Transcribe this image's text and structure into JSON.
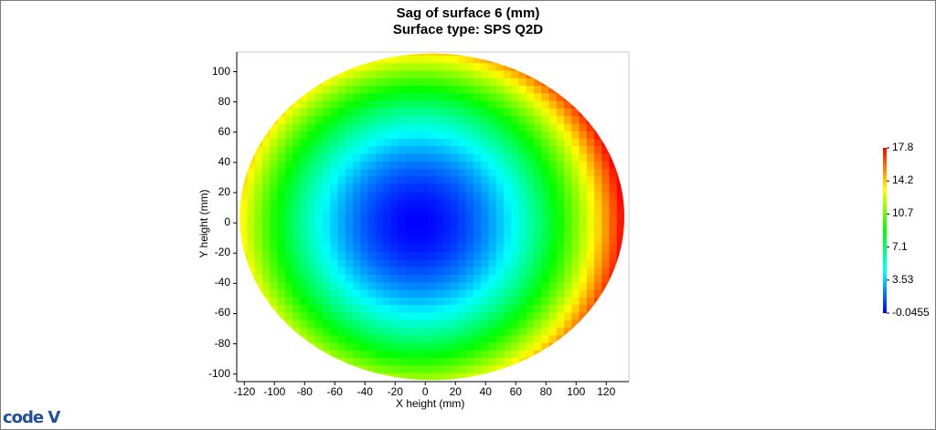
{
  "chart_data": {
    "type": "heatmap",
    "title": "Sag of surface 6 (mm)",
    "subtitle": "Surface type: SPS Q2D",
    "xlabel": "X height (mm)",
    "ylabel": "Y height (mm)",
    "xlim": [
      -125,
      135
    ],
    "ylim": [
      -105,
      113
    ],
    "x_ticks": [
      -120,
      -100,
      -80,
      -60,
      -40,
      -20,
      0,
      20,
      40,
      60,
      80,
      100,
      120
    ],
    "y_ticks": [
      -100,
      -80,
      -60,
      -40,
      -20,
      0,
      20,
      40,
      60,
      80,
      100
    ],
    "x_tick_labels": [
      "-120",
      "-100",
      "-80",
      "-60",
      "-40",
      "-20",
      "0",
      "20",
      "40",
      "60",
      "80",
      "100",
      "120"
    ],
    "y_tick_labels": [
      "-100",
      "-80",
      "-60",
      "-40",
      "-20",
      "0",
      "20",
      "40",
      "60",
      "80",
      "100"
    ],
    "aperture": {
      "center": [
        0,
        0
      ],
      "x_min": -123,
      "x_max": 132,
      "y_min": -104,
      "y_max": 112
    },
    "sag_min_location": [
      -5,
      0
    ],
    "colorbar": {
      "min": -0.0455,
      "max": 17.8,
      "tick_labels": [
        "17.8",
        "14.2",
        "10.7",
        "7.1",
        "3.53",
        "-0.0455"
      ],
      "colors": [
        "#0000ff",
        "#00ffff",
        "#00ff00",
        "#ffff00",
        "#ff0000"
      ]
    },
    "grid": false
  },
  "logo": {
    "text": "code V"
  }
}
